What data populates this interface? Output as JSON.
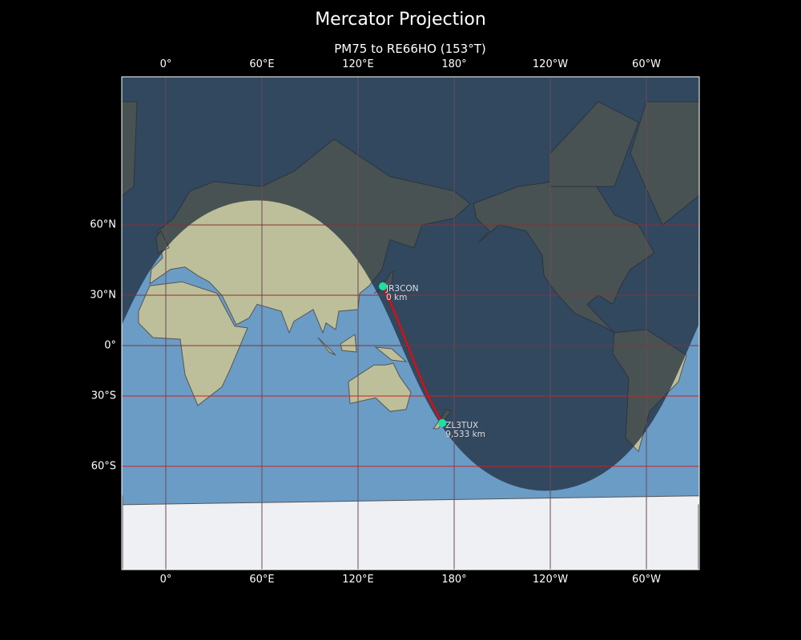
{
  "title": "Mercator Projection",
  "subtitle": "PM75 to RE66HO (153°T)",
  "x_ticks": [
    {
      "lon": 0,
      "label": "0°"
    },
    {
      "lon": 60,
      "label": "60°E"
    },
    {
      "lon": 120,
      "label": "120°E"
    },
    {
      "lon": 180,
      "label": "180°"
    },
    {
      "lon": 240,
      "label": "120°W"
    },
    {
      "lon": 300,
      "label": "60°W"
    }
  ],
  "y_ticks": [
    {
      "lat": 60,
      "label": "60°N"
    },
    {
      "lat": 30,
      "label": "30°N"
    },
    {
      "lat": 0,
      "label": "0°"
    },
    {
      "lat": -30,
      "label": "30°S"
    },
    {
      "lat": -60,
      "label": "60°S"
    }
  ],
  "map": {
    "central_longitude": 152.5,
    "lat_range": [
      -80,
      84
    ],
    "day_night_shading": true
  },
  "stations": [
    {
      "call": "JR3CON",
      "distance": "0 km",
      "lat": 34.7,
      "lon": 135.5
    },
    {
      "call": "ZL3TUX",
      "distance": "9,533 km",
      "lat": -43.5,
      "lon": 172.6
    }
  ],
  "colors": {
    "path": "#ff0000",
    "marker": "#1ee0a0",
    "ocean": "#6a9cc6",
    "land": "#bdbf9a",
    "ice": "#eef0f4",
    "night": "#1c2838",
    "grid": "#8a3030",
    "grid_highlight": "#d02020"
  }
}
